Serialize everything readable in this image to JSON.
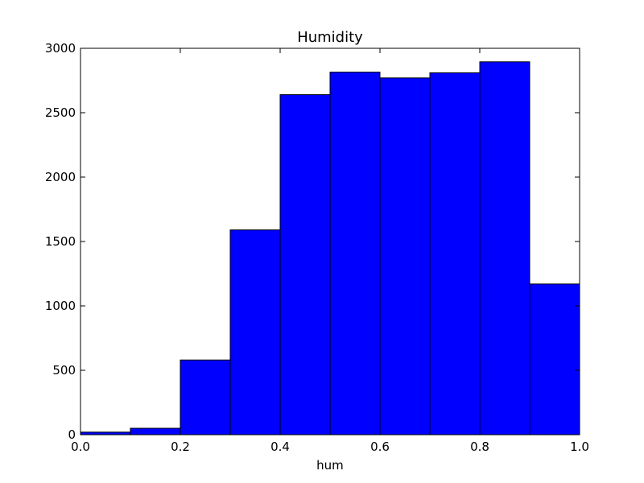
{
  "chart_data": {
    "type": "bar",
    "title": "Humidity",
    "xlabel": "hum",
    "ylabel": "",
    "bin_edges": [
      0.0,
      0.1,
      0.2,
      0.3,
      0.4,
      0.5,
      0.6,
      0.7,
      0.8,
      0.9,
      1.0
    ],
    "values": [
      20,
      50,
      580,
      1590,
      2640,
      2815,
      2770,
      2810,
      2895,
      1170
    ],
    "xlim": [
      0.0,
      1.0
    ],
    "ylim": [
      0,
      3000
    ],
    "x_ticks": [
      "0.0",
      "0.2",
      "0.4",
      "0.6",
      "0.8",
      "1.0"
    ],
    "y_ticks": [
      "0",
      "500",
      "1000",
      "1500",
      "2000",
      "2500",
      "3000"
    ],
    "bar_color": "#0000ff",
    "edge_color": "#000000",
    "grid": false,
    "legend": "none"
  }
}
